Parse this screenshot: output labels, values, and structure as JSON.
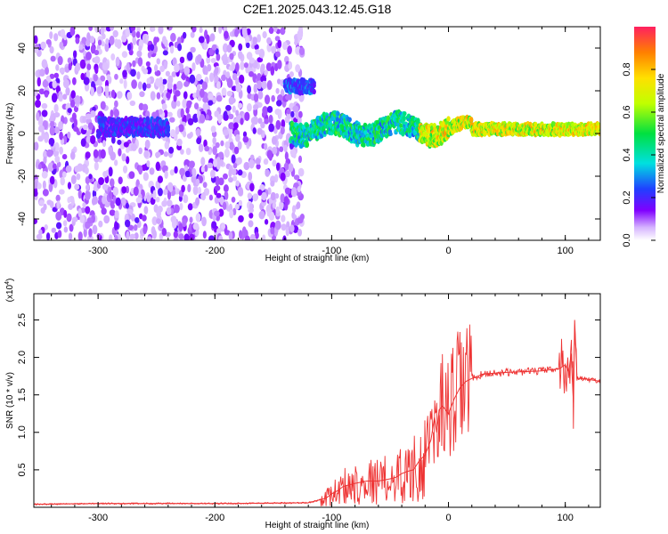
{
  "title": "C2E1.2025.043.12.45.G18",
  "colors": {
    "line": "#ee3333",
    "axis": "#000000"
  },
  "chart_data": [
    {
      "type": "heatmap",
      "xlabel": "Height of straight line (km)",
      "ylabel": "Frequency (Hz)",
      "xlim": [
        -355,
        130
      ],
      "ylim": [
        -50,
        50
      ],
      "x_ticks": [
        -300,
        -200,
        -100,
        0,
        100
      ],
      "y_ticks": [
        -40,
        -20,
        0,
        20,
        40
      ],
      "x_tick_labels": [
        "-300",
        "-200",
        "-100",
        "0",
        "100"
      ],
      "y_tick_labels": [
        "-40",
        "-20",
        "0",
        "20",
        "40"
      ],
      "colorscale": "rainbow",
      "colorbar": {
        "label": "Normalized spectral amplitude",
        "range": [
          0,
          1
        ],
        "ticks": [
          0.0,
          0.2,
          0.4,
          0.6,
          0.8
        ],
        "tick_labels": [
          "0.0",
          "0.2",
          "0.4",
          "0.6",
          "0.8"
        ]
      },
      "features": [
        {
          "kind": "noise",
          "x_range": [
            -355,
            -125
          ],
          "y_range": [
            -50,
            50
          ],
          "amplitude": 0.1
        },
        {
          "kind": "band",
          "x_range": [
            -300,
            -240
          ],
          "center_freq": 3,
          "width": 8,
          "amplitude": 0.25
        },
        {
          "kind": "band",
          "x_range": [
            -140,
            -115
          ],
          "center_freq": 22,
          "width": 6,
          "amplitude": 0.3
        },
        {
          "kind": "band",
          "x_range": [
            -135,
            130
          ],
          "center_freq": 2,
          "width": 10,
          "amplitude": 0.5
        }
      ]
    },
    {
      "type": "line",
      "xlabel": "Height of straight line (km)",
      "ylabel": "SNR (10 * v/v)",
      "y_multiplier": "(x10",
      "y_multiplier_exp": "4",
      "y_multiplier_close": ")",
      "xlim": [
        -355,
        130
      ],
      "ylim": [
        0,
        2.85
      ],
      "x_ticks": [
        -300,
        -200,
        -100,
        0,
        100
      ],
      "y_ticks": [
        0.5,
        1.0,
        1.5,
        2.0,
        2.5
      ],
      "x_tick_labels": [
        "-300",
        "-200",
        "-100",
        "0",
        "100"
      ],
      "y_tick_labels": [
        "0.5",
        "1.0",
        "1.5",
        "2.0",
        "2.5"
      ],
      "series": [
        {
          "x": [
            -355,
            -300,
            -200,
            -120,
            -105,
            -100,
            -95,
            -90,
            -80,
            -70,
            -60,
            -50,
            -45,
            -40,
            -35,
            -30,
            -25,
            -20,
            -15,
            -12,
            -10,
            -8,
            -5,
            0,
            5,
            10,
            15,
            20,
            30,
            50,
            80,
            95,
            100,
            103,
            105,
            107,
            108,
            110,
            115,
            130
          ],
          "y": [
            0.04,
            0.05,
            0.05,
            0.06,
            0.12,
            0.18,
            0.22,
            0.28,
            0.32,
            0.35,
            0.35,
            0.38,
            0.4,
            0.45,
            0.48,
            0.5,
            0.62,
            0.7,
            0.9,
            1.2,
            1.0,
            1.3,
            1.35,
            1.25,
            1.45,
            1.6,
            1.68,
            1.72,
            1.78,
            1.8,
            1.82,
            1.85,
            1.9,
            1.8,
            2.05,
            1.4,
            2.5,
            1.72,
            1.72,
            1.68
          ]
        }
      ]
    }
  ]
}
